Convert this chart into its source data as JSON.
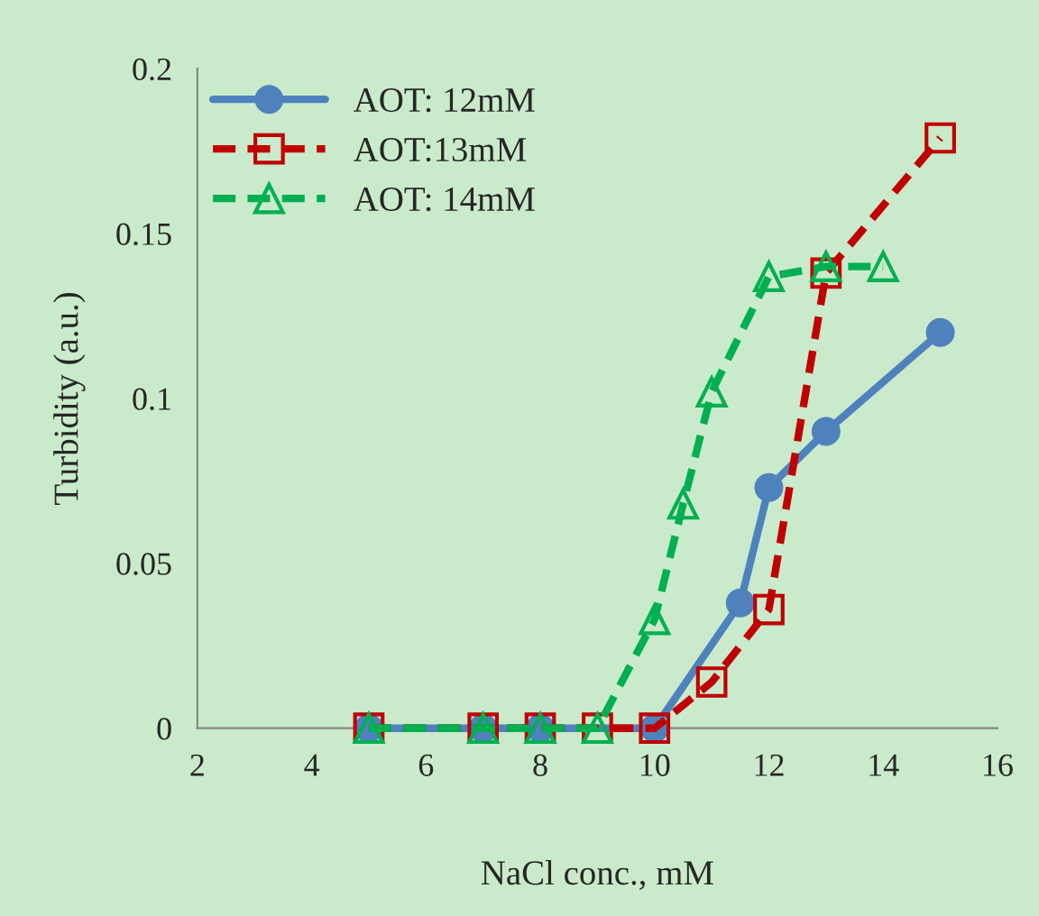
{
  "chart_data": {
    "type": "line",
    "xlabel": "NaCl conc., mM",
    "ylabel": "Turbidity (a.u.)",
    "xlim": [
      2,
      16
    ],
    "xticks": [
      2,
      4,
      6,
      8,
      10,
      12,
      14,
      16
    ],
    "ylim": [
      0,
      0.2
    ],
    "yticks": [
      0,
      0.05,
      0.1,
      0.15,
      0.2
    ],
    "grid": false,
    "legend": "top left",
    "series": [
      {
        "name": "AOT: 12mM",
        "color": "#4f81bd",
        "marker": "circle",
        "line_style": "solid",
        "x": [
          5,
          7,
          8,
          10,
          11.5,
          12,
          13,
          15
        ],
        "values": [
          0,
          0,
          0,
          0,
          0.038,
          0.073,
          0.09,
          0.12
        ]
      },
      {
        "name": "AOT:13mM",
        "color": "#c00000",
        "marker": "square",
        "line_style": "dashed",
        "x": [
          5,
          7,
          8,
          9,
          10,
          11,
          12,
          13,
          15
        ],
        "values": [
          0,
          0,
          0,
          0,
          0,
          0.014,
          0.036,
          0.138,
          0.179
        ]
      },
      {
        "name": "AOT: 14mM",
        "color": "#00b050",
        "marker": "triangle",
        "line_style": "dashed",
        "x": [
          5,
          7,
          8,
          9,
          10,
          10.5,
          11,
          12,
          13,
          14
        ],
        "values": [
          0,
          0,
          0,
          0,
          0.033,
          0.068,
          0.102,
          0.137,
          0.14,
          0.14
        ]
      }
    ]
  }
}
